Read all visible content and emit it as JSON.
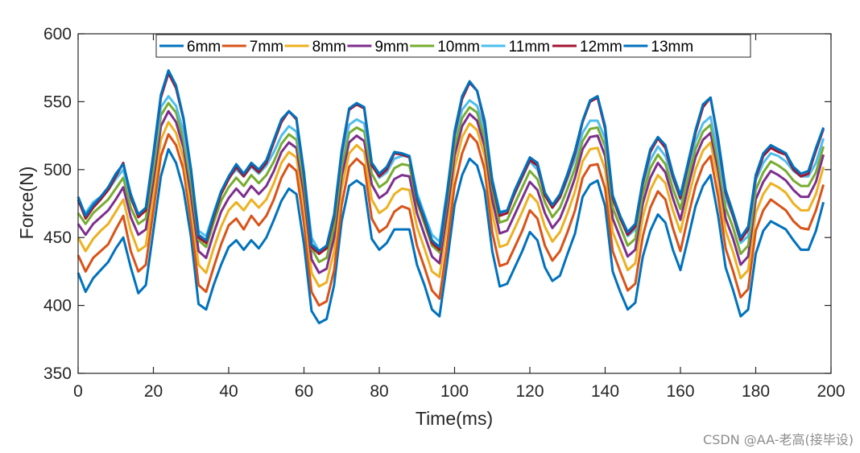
{
  "chart_data": {
    "type": "line",
    "title": "",
    "xlabel": "Time(ms)",
    "ylabel": "Force(N)",
    "xlim": [
      0,
      200
    ],
    "ylim": [
      350,
      600
    ],
    "xticks": [
      0,
      20,
      40,
      60,
      80,
      100,
      120,
      140,
      160,
      180,
      200
    ],
    "yticks": [
      350,
      400,
      450,
      500,
      550,
      600
    ],
    "grid": false,
    "legend_position": "top",
    "x": [
      0,
      2,
      4,
      6,
      8,
      10,
      12,
      14,
      16,
      18,
      20,
      22,
      24,
      26,
      28,
      30,
      32,
      34,
      36,
      38,
      40,
      42,
      44,
      46,
      48,
      50,
      52,
      54,
      56,
      58,
      60,
      62,
      64,
      66,
      68,
      70,
      72,
      74,
      76,
      78,
      80,
      82,
      84,
      86,
      88,
      90,
      92,
      94,
      96,
      98,
      100,
      102,
      104,
      106,
      108,
      110,
      112,
      114,
      116,
      118,
      120,
      122,
      124,
      126,
      128,
      130,
      132,
      134,
      136,
      138,
      140,
      142,
      144,
      146,
      148,
      150,
      152,
      154,
      156,
      158,
      160,
      162,
      164,
      166,
      168,
      170,
      172,
      174,
      176,
      178,
      180,
      182,
      184,
      186,
      188,
      190,
      192,
      194,
      196,
      198
    ],
    "series": [
      {
        "name": "6mm",
        "color": "#0072BD",
        "values": [
          424,
          410,
          420,
          426,
          432,
          442,
          450,
          428,
          409,
          415,
          455,
          495,
          515,
          505,
          485,
          450,
          401,
          397,
          415,
          430,
          443,
          448,
          441,
          448,
          442,
          450,
          463,
          477,
          486,
          482,
          445,
          396,
          387,
          390,
          415,
          462,
          488,
          492,
          488,
          449,
          441,
          446,
          456,
          456,
          456,
          430,
          415,
          397,
          392,
          431,
          474,
          496,
          508,
          503,
          484,
          440,
          414,
          416,
          428,
          440,
          454,
          448,
          428,
          418,
          422,
          438,
          453,
          480,
          489,
          492,
          473,
          425,
          410,
          397,
          402,
          436,
          455,
          467,
          461,
          441,
          426,
          449,
          473,
          488,
          496,
          466,
          428,
          411,
          392,
          397,
          438,
          455,
          462,
          459,
          456,
          448,
          441,
          441,
          455,
          476
        ]
      },
      {
        "name": "7mm",
        "color": "#D95319",
        "values": [
          437,
          425,
          435,
          440,
          445,
          456,
          466,
          440,
          425,
          430,
          470,
          510,
          526,
          518,
          500,
          461,
          415,
          410,
          428,
          445,
          459,
          464,
          456,
          466,
          459,
          466,
          478,
          494,
          504,
          499,
          460,
          410,
          400,
          403,
          426,
          474,
          502,
          508,
          503,
          464,
          454,
          458,
          469,
          473,
          471,
          444,
          428,
          411,
          405,
          444,
          488,
          512,
          526,
          520,
          500,
          454,
          429,
          431,
          443,
          455,
          470,
          464,
          444,
          433,
          440,
          454,
          470,
          494,
          503,
          504,
          486,
          440,
          425,
          411,
          416,
          451,
          472,
          484,
          478,
          457,
          440,
          465,
          488,
          503,
          510,
          480,
          442,
          425,
          406,
          412,
          455,
          470,
          478,
          474,
          470,
          462,
          457,
          456,
          470,
          489
        ]
      },
      {
        "name": "8mm",
        "color": "#EDB120",
        "values": [
          450,
          440,
          449,
          455,
          460,
          469,
          478,
          455,
          440,
          444,
          482,
          522,
          535,
          527,
          508,
          472,
          430,
          424,
          442,
          458,
          470,
          476,
          470,
          478,
          472,
          478,
          490,
          505,
          513,
          509,
          473,
          424,
          414,
          417,
          440,
          486,
          512,
          518,
          513,
          478,
          468,
          472,
          482,
          486,
          485,
          458,
          442,
          425,
          421,
          459,
          501,
          524,
          534,
          529,
          510,
          468,
          443,
          445,
          457,
          469,
          482,
          476,
          458,
          447,
          454,
          468,
          484,
          506,
          515,
          516,
          500,
          454,
          440,
          426,
          431,
          465,
          485,
          496,
          490,
          470,
          454,
          478,
          500,
          514,
          520,
          492,
          455,
          439,
          420,
          426,
          468,
          482,
          490,
          487,
          483,
          475,
          470,
          470,
          482,
          502
        ]
      },
      {
        "name": "9mm",
        "color": "#7E2F8E",
        "values": [
          460,
          452,
          460,
          465,
          470,
          478,
          487,
          465,
          452,
          456,
          492,
          532,
          543,
          535,
          516,
          481,
          440,
          435,
          453,
          469,
          479,
          486,
          480,
          488,
          482,
          488,
          499,
          513,
          520,
          516,
          482,
          434,
          424,
          427,
          450,
          495,
          520,
          525,
          521,
          489,
          479,
          483,
          493,
          496,
          495,
          468,
          452,
          436,
          431,
          468,
          510,
          532,
          541,
          536,
          517,
          478,
          453,
          455,
          467,
          479,
          491,
          485,
          468,
          457,
          464,
          478,
          494,
          515,
          524,
          525,
          510,
          464,
          450,
          436,
          441,
          475,
          494,
          505,
          498,
          479,
          463,
          487,
          509,
          522,
          527,
          500,
          464,
          449,
          430,
          436,
          478,
          491,
          499,
          496,
          492,
          485,
          480,
          480,
          491,
          511
        ]
      },
      {
        "name": "10mm",
        "color": "#77AC30",
        "values": [
          468,
          460,
          468,
          473,
          478,
          486,
          494,
          472,
          460,
          464,
          500,
          540,
          549,
          542,
          522,
          489,
          448,
          443,
          461,
          477,
          487,
          494,
          488,
          496,
          490,
          496,
          506,
          519,
          526,
          522,
          489,
          442,
          432,
          435,
          458,
          502,
          527,
          531,
          528,
          497,
          487,
          491,
          501,
          504,
          503,
          476,
          460,
          444,
          439,
          476,
          517,
          538,
          546,
          542,
          523,
          486,
          461,
          463,
          475,
          487,
          499,
          493,
          476,
          465,
          472,
          486,
          501,
          521,
          530,
          531,
          517,
          472,
          458,
          444,
          449,
          482,
          501,
          511,
          504,
          486,
          471,
          494,
          515,
          528,
          533,
          506,
          472,
          457,
          438,
          444,
          485,
          498,
          506,
          503,
          499,
          492,
          488,
          488,
          498,
          517
        ]
      },
      {
        "name": "11mm",
        "color": "#4DBEEE",
        "values": [
          476,
          468,
          476,
          480,
          485,
          493,
          500,
          478,
          467,
          471,
          507,
          546,
          554,
          547,
          528,
          496,
          455,
          451,
          468,
          484,
          494,
          500,
          495,
          502,
          497,
          503,
          513,
          525,
          532,
          528,
          496,
          450,
          440,
          443,
          466,
          509,
          533,
          537,
          534,
          504,
          494,
          498,
          508,
          510,
          510,
          483,
          467,
          452,
          447,
          484,
          524,
          544,
          551,
          547,
          529,
          493,
          469,
          470,
          482,
          494,
          506,
          500,
          483,
          472,
          479,
          493,
          508,
          527,
          536,
          536,
          523,
          479,
          465,
          451,
          456,
          489,
          507,
          517,
          510,
          493,
          478,
          501,
          521,
          534,
          539,
          512,
          479,
          465,
          446,
          451,
          492,
          505,
          512,
          510,
          506,
          499,
          495,
          495,
          505,
          523
        ]
      },
      {
        "name": "12mm",
        "color": "#A2142F",
        "values": [
          478,
          464,
          472,
          478,
          485,
          495,
          505,
          480,
          465,
          470,
          510,
          553,
          571,
          560,
          537,
          499,
          450,
          446,
          465,
          482,
          493,
          502,
          495,
          503,
          498,
          505,
          520,
          535,
          543,
          537,
          496,
          443,
          438,
          442,
          465,
          512,
          544,
          548,
          545,
          503,
          495,
          500,
          512,
          511,
          509,
          478,
          463,
          446,
          441,
          480,
          526,
          552,
          564,
          558,
          534,
          490,
          466,
          468,
          483,
          495,
          507,
          503,
          481,
          472,
          480,
          495,
          512,
          535,
          550,
          553,
          530,
          479,
          464,
          452,
          458,
          490,
          513,
          523,
          516,
          495,
          479,
          503,
          527,
          546,
          553,
          521,
          483,
          466,
          448,
          456,
          494,
          510,
          516,
          513,
          511,
          500,
          495,
          497,
          514,
          530
        ]
      },
      {
        "name": "13mm",
        "color": "#0072BD",
        "values": [
          480,
          466,
          474,
          480,
          487,
          497,
          504,
          482,
          467,
          472,
          512,
          555,
          573,
          562,
          538,
          500,
          452,
          448,
          467,
          484,
          495,
          504,
          497,
          505,
          500,
          507,
          522,
          537,
          543,
          538,
          498,
          445,
          440,
          444,
          467,
          514,
          545,
          549,
          546,
          505,
          497,
          502,
          513,
          512,
          510,
          480,
          465,
          448,
          443,
          482,
          528,
          554,
          565,
          558,
          536,
          492,
          468,
          470,
          485,
          497,
          509,
          505,
          483,
          474,
          482,
          497,
          514,
          536,
          551,
          554,
          532,
          481,
          466,
          454,
          460,
          492,
          515,
          524,
          518,
          497,
          481,
          505,
          529,
          548,
          553,
          523,
          485,
          468,
          450,
          458,
          496,
          512,
          518,
          515,
          512,
          502,
          497,
          499,
          516,
          531
        ]
      }
    ]
  },
  "watermark": "CSDN @AA-老高(接毕设)"
}
